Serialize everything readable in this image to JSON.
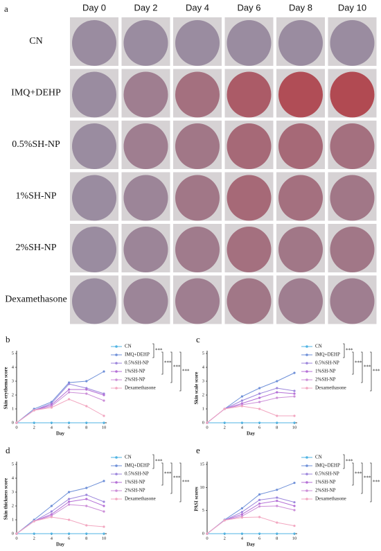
{
  "photo_panel": {
    "label": "a",
    "columns": [
      "Day 0",
      "Day 2",
      "Day 4",
      "Day 6",
      "Day 8",
      "Day 10"
    ],
    "rows": [
      "CN",
      "IMQ+DEHP",
      "0.5%SH-NP",
      "1%SH-NP",
      "2%SH-NP",
      "Dexamethasone"
    ]
  },
  "chart_data": [
    {
      "type": "line",
      "label": "b",
      "ylabel": "Skin erythema score",
      "xlabel": "Day",
      "x": [
        0,
        2,
        4,
        6,
        8,
        10
      ],
      "xlim": [
        0,
        10
      ],
      "xticks": [
        0,
        2,
        4,
        6,
        8,
        10
      ],
      "ylim": [
        0,
        5
      ],
      "yticks": [
        0,
        1,
        2,
        3,
        4,
        5
      ],
      "series": [
        {
          "name": "CN",
          "color": "#4fb3e3",
          "values": [
            0,
            0,
            0,
            0,
            0,
            0
          ]
        },
        {
          "name": "IMQ+DEHP",
          "color": "#6d8fd8",
          "values": [
            0,
            1.0,
            1.5,
            2.9,
            3.0,
            3.7
          ]
        },
        {
          "name": "0.5%SH-NP",
          "color": "#9c86dc",
          "values": [
            0,
            0.9,
            1.4,
            2.8,
            2.5,
            2.1
          ]
        },
        {
          "name": "1%SH-NP",
          "color": "#b46fd6",
          "values": [
            0,
            0.9,
            1.3,
            2.4,
            2.4,
            2.0
          ]
        },
        {
          "name": "2%SH-NP",
          "color": "#cc8ed8",
          "values": [
            0,
            0.9,
            1.2,
            2.2,
            2.1,
            1.6
          ]
        },
        {
          "name": "Dexamethasone",
          "color": "#f2a6c0",
          "values": [
            0,
            0.9,
            1.1,
            1.7,
            1.2,
            0.5
          ]
        }
      ],
      "annotations": [
        "***",
        "***",
        "***",
        "***"
      ]
    },
    {
      "type": "line",
      "label": "c",
      "ylabel": "Skin scale score",
      "xlabel": "Day",
      "x": [
        0,
        2,
        4,
        6,
        8,
        10
      ],
      "xlim": [
        0,
        10
      ],
      "xticks": [
        0,
        2,
        4,
        6,
        8,
        10
      ],
      "ylim": [
        0,
        5
      ],
      "yticks": [
        0,
        1,
        2,
        3,
        4,
        5
      ],
      "series": [
        {
          "name": "CN",
          "color": "#4fb3e3",
          "values": [
            0,
            0,
            0,
            0,
            0,
            0
          ]
        },
        {
          "name": "IMQ+DEHP",
          "color": "#6d8fd8",
          "values": [
            0,
            1.0,
            1.9,
            2.5,
            3.0,
            3.6
          ]
        },
        {
          "name": "0.5%SH-NP",
          "color": "#9c86dc",
          "values": [
            0,
            1.0,
            1.6,
            2.1,
            2.5,
            2.3
          ]
        },
        {
          "name": "1%SH-NP",
          "color": "#b46fd6",
          "values": [
            0,
            1.0,
            1.4,
            1.8,
            2.2,
            2.1
          ]
        },
        {
          "name": "2%SH-NP",
          "color": "#cc8ed8",
          "values": [
            0,
            1.0,
            1.3,
            1.5,
            1.8,
            1.9
          ]
        },
        {
          "name": "Dexamethasone",
          "color": "#f2a6c0",
          "values": [
            0,
            1.0,
            1.2,
            1.0,
            0.5,
            0.5
          ]
        }
      ],
      "annotations": [
        "***",
        "***",
        "***",
        "***"
      ]
    },
    {
      "type": "line",
      "label": "d",
      "ylabel": "Skin thickness score",
      "xlabel": "Day",
      "x": [
        0,
        2,
        4,
        6,
        8,
        10
      ],
      "xlim": [
        0,
        10
      ],
      "xticks": [
        0,
        2,
        4,
        6,
        8,
        10
      ],
      "ylim": [
        0,
        5
      ],
      "yticks": [
        0,
        1,
        2,
        3,
        4,
        5
      ],
      "series": [
        {
          "name": "CN",
          "color": "#4fb3e3",
          "values": [
            0,
            0,
            0,
            0,
            0,
            0
          ]
        },
        {
          "name": "IMQ+DEHP",
          "color": "#6d8fd8",
          "values": [
            0,
            1.0,
            2.0,
            3.0,
            3.3,
            3.8
          ]
        },
        {
          "name": "0.5%SH-NP",
          "color": "#9c86dc",
          "values": [
            0,
            0.9,
            1.6,
            2.5,
            2.8,
            2.3
          ]
        },
        {
          "name": "1%SH-NP",
          "color": "#b46fd6",
          "values": [
            0,
            0.9,
            1.4,
            2.3,
            2.5,
            2.0
          ]
        },
        {
          "name": "2%SH-NP",
          "color": "#cc8ed8",
          "values": [
            0,
            0.9,
            1.3,
            2.1,
            2.0,
            1.6
          ]
        },
        {
          "name": "Dexamethasone",
          "color": "#f2a6c0",
          "values": [
            0,
            0.9,
            1.2,
            1.0,
            0.6,
            0.5
          ]
        }
      ],
      "annotations": [
        "***",
        "***",
        "***",
        "***"
      ]
    },
    {
      "type": "line",
      "label": "e",
      "ylabel": "PASI scores",
      "xlabel": "Day",
      "x": [
        0,
        2,
        4,
        6,
        8,
        10
      ],
      "xlim": [
        0,
        10
      ],
      "xticks": [
        0,
        2,
        4,
        6,
        8,
        10
      ],
      "ylim": [
        0,
        15
      ],
      "yticks": [
        0,
        5,
        10,
        15
      ],
      "series": [
        {
          "name": "CN",
          "color": "#4fb3e3",
          "values": [
            0,
            0,
            0,
            0,
            0,
            0
          ]
        },
        {
          "name": "IMQ+DEHP",
          "color": "#6d8fd8",
          "values": [
            0,
            3.0,
            5.5,
            8.5,
            9.5,
            11.0
          ]
        },
        {
          "name": "0.5%SH-NP",
          "color": "#9c86dc",
          "values": [
            0,
            2.9,
            4.7,
            7.3,
            7.8,
            6.8
          ]
        },
        {
          "name": "1%SH-NP",
          "color": "#b46fd6",
          "values": [
            0,
            2.9,
            4.2,
            6.5,
            7.1,
            6.0
          ]
        },
        {
          "name": "2%SH-NP",
          "color": "#cc8ed8",
          "values": [
            0,
            2.9,
            3.8,
            5.9,
            6.0,
            5.1
          ]
        },
        {
          "name": "Dexamethasone",
          "color": "#f2a6c0",
          "values": [
            0,
            2.9,
            3.5,
            3.6,
            2.4,
            1.7
          ]
        }
      ],
      "annotations": [
        "***",
        "***",
        "***",
        "***"
      ]
    }
  ]
}
